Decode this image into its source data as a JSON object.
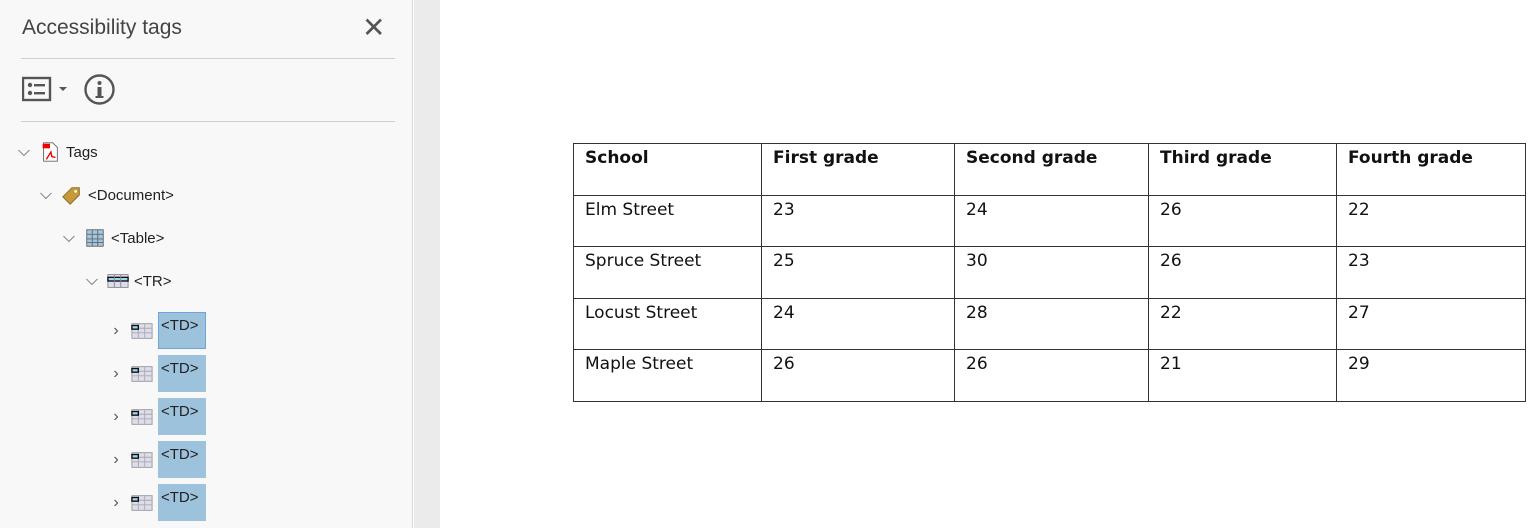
{
  "panel": {
    "title": "Accessibility tags",
    "close_icon": "close-icon",
    "options_icon": "options-list-icon",
    "info_icon": "info-icon",
    "tree": [
      {
        "label": "Tags",
        "icon": "pdf-icon",
        "level": 0
      },
      {
        "label": "<Document>",
        "icon": "tag-icon",
        "level": 1
      },
      {
        "label": "<Table>",
        "icon": "table-icon",
        "level": 2
      },
      {
        "label": "<TR>",
        "icon": "table-row-icon",
        "level": 3
      },
      {
        "label": "<TD>",
        "icon": "table-cell-icon",
        "level": 4
      },
      {
        "label": "<TD>",
        "icon": "table-cell-icon",
        "level": 4
      },
      {
        "label": "<TD>",
        "icon": "table-cell-icon",
        "level": 4
      },
      {
        "label": "<TD>",
        "icon": "table-cell-icon",
        "level": 4
      },
      {
        "label": "<TD>",
        "icon": "table-cell-icon",
        "level": 4
      }
    ]
  },
  "document": {
    "table": {
      "headers": [
        "School",
        "First grade",
        "Second grade",
        "Third grade",
        "Fourth grade"
      ],
      "rows": [
        [
          "Elm Street",
          "23",
          "24",
          "26",
          "22"
        ],
        [
          "Spruce Street",
          "25",
          "30",
          "26",
          "23"
        ],
        [
          "Locust Street",
          "24",
          "28",
          "22",
          "27"
        ],
        [
          "Maple Street",
          "26",
          "26",
          "21",
          "29"
        ]
      ]
    }
  },
  "colors": {
    "selection": "#9cc2dc",
    "panel_bg": "#f8f8f8"
  }
}
